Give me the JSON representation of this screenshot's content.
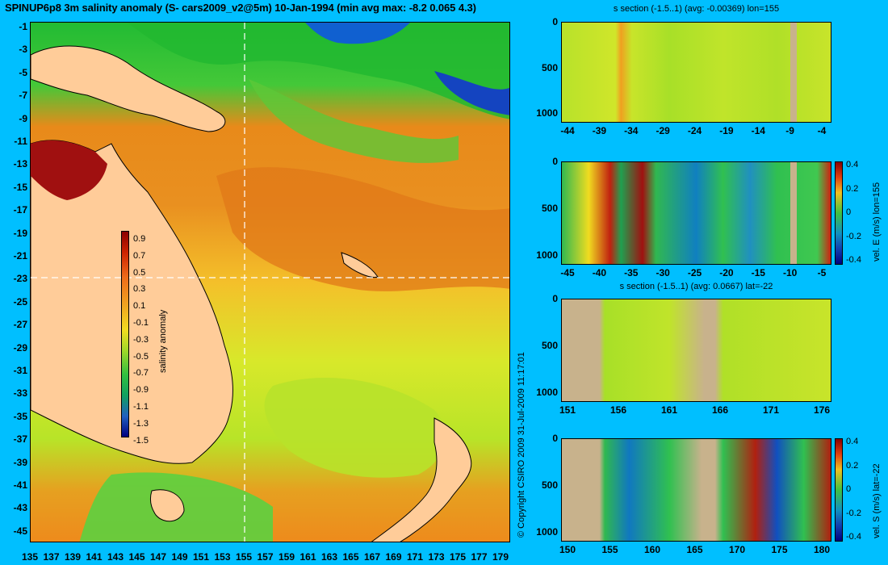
{
  "title": "SPINUP6p8 3m salinity anomaly (S- cars2009_v2@5m) 10-Jan-1994 (min avg max: -8.2 0.065 4.3)",
  "copyright": "© Copyright CSIRO 2009   31-Jul-2009 11:17:01",
  "colors": {
    "background": "#00bfff",
    "land": "#ffcc99",
    "section_land": "#c8b28c"
  },
  "map": {
    "lat_ticks": [
      "-1",
      "-3",
      "-5",
      "-7",
      "-9",
      "-11",
      "-13",
      "-15",
      "-17",
      "-19",
      "-21",
      "-23",
      "-25",
      "-27",
      "-29",
      "-31",
      "-33",
      "-35",
      "-37",
      "-39",
      "-41",
      "-43",
      "-45"
    ],
    "lon_ticks": [
      "135",
      "137",
      "139",
      "141",
      "143",
      "145",
      "147",
      "149",
      "151",
      "153",
      "155",
      "157",
      "159",
      "161",
      "163",
      "165",
      "167",
      "169",
      "171",
      "173",
      "175",
      "177",
      "179"
    ],
    "crosshair": {
      "lon": 155,
      "lat": -22
    },
    "colorbar": {
      "label": "salinity anomaly",
      "ticks": [
        "0.9",
        "0.7",
        "0.5",
        "0.3",
        "0.1",
        "-0.1",
        "-0.3",
        "-0.5",
        "-0.7",
        "-0.9",
        "-1.1",
        "-1.3",
        "-1.5"
      ]
    }
  },
  "sections": [
    {
      "title": "s section (-1.5..1) (avg: -0.00369) lon=155",
      "x_ticks": [
        "-44",
        "-39",
        "-34",
        "-29",
        "-24",
        "-19",
        "-14",
        "-9",
        "-4"
      ],
      "y_ticks": [
        "0",
        "500",
        "1000"
      ],
      "colorbar": null
    },
    {
      "title": "",
      "x_ticks": [
        "-45",
        "-40",
        "-35",
        "-30",
        "-25",
        "-20",
        "-15",
        "-10",
        "-5"
      ],
      "y_ticks": [
        "0",
        "500",
        "1000"
      ],
      "colorbar": {
        "label": "vel. E (m/s) lon=155",
        "ticks": [
          "0.4",
          "0.2",
          "0",
          "-0.2",
          "-0.4"
        ]
      }
    },
    {
      "title": "s section (-1.5..1) (avg: 0.0667) lat=-22",
      "x_ticks": [
        "151",
        "156",
        "161",
        "166",
        "171",
        "176"
      ],
      "y_ticks": [
        "0",
        "500",
        "1000"
      ],
      "colorbar": null
    },
    {
      "title": "",
      "x_ticks": [
        "150",
        "155",
        "160",
        "165",
        "170",
        "175",
        "180"
      ],
      "y_ticks": [
        "0",
        "500",
        "1000"
      ],
      "colorbar": {
        "label": "vel. S (m/s) lat=-22",
        "ticks": [
          "0.4",
          "0.2",
          "0",
          "-0.2",
          "-0.4"
        ]
      }
    }
  ]
}
